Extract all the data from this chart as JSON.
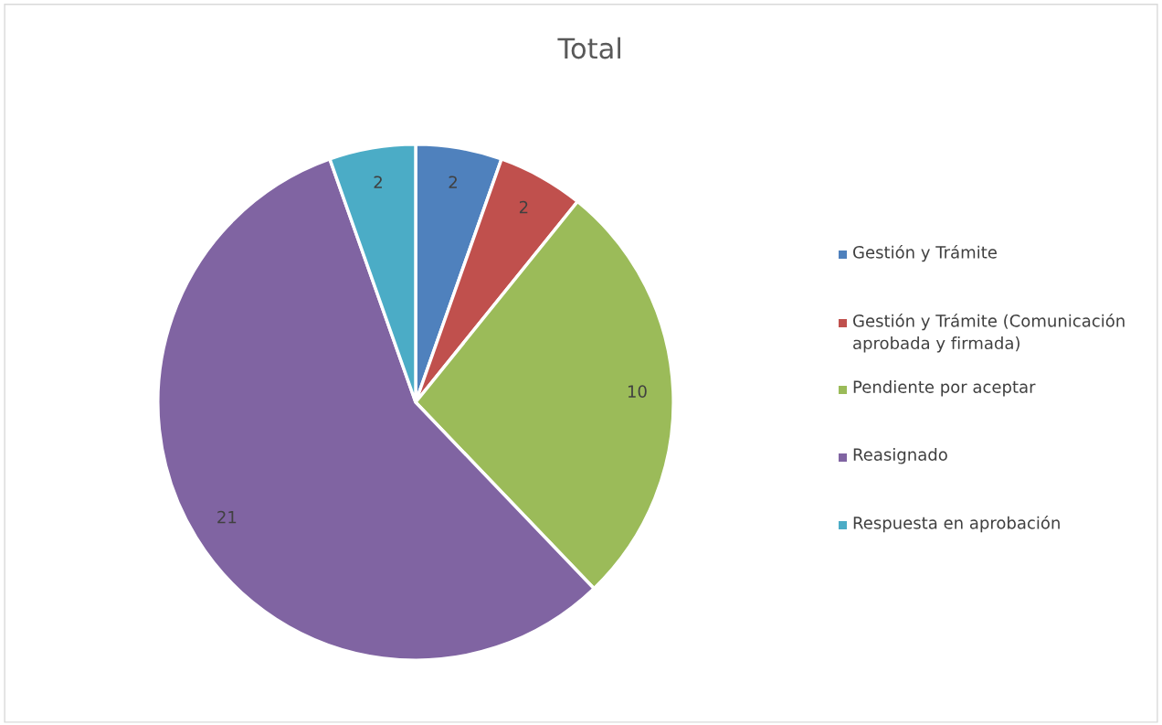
{
  "chart_data": {
    "type": "pie",
    "title": "Total",
    "categories": [
      "Gestión y Trámite",
      "Gestión y Trámite (Comunicación aprobada y firmada)",
      "Pendiente por aceptar",
      "Reasignado",
      "Respuesta en aprobación"
    ],
    "values": [
      2,
      2,
      10,
      21,
      2
    ],
    "colors": [
      "#4f81bd",
      "#c0504d",
      "#9bbb59",
      "#8064a2",
      "#4bacc6"
    ],
    "data_labels": true,
    "legend": "right"
  }
}
